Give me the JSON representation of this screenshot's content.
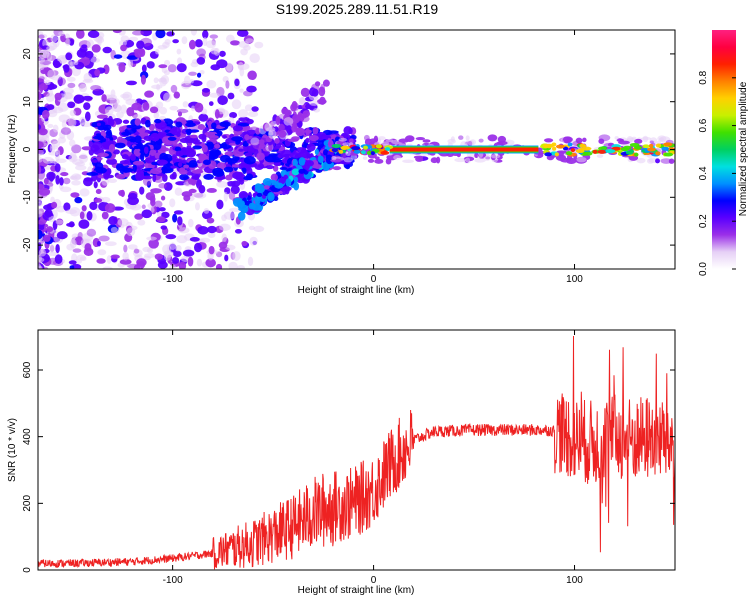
{
  "title": "S199.2025.289.11.51.R19",
  "chart_data": [
    {
      "type": "heatmap",
      "xlabel": "Height of straight line (km)",
      "ylabel": "Frequency (Hz)",
      "xlim": [
        -167,
        150
      ],
      "ylim": [
        -25,
        25
      ],
      "xticks": [
        -100,
        0,
        100
      ],
      "yticks": [
        -20,
        -10,
        0,
        10,
        20
      ],
      "colorbar": {
        "label": "Normalized spectral amplitude",
        "range": [
          0,
          1
        ],
        "ticks": [
          "0.0",
          "0.2",
          "0.4",
          "0.6",
          "0.8"
        ],
        "colors": [
          "#ffffff",
          "#e6d0f6",
          "#9b30e8",
          "#5a00ff",
          "#0000ff",
          "#0090ff",
          "#00e0e0",
          "#00d060",
          "#40e000",
          "#c8f000",
          "#ffd000",
          "#ff8000",
          "#ff2000",
          "#ff0040",
          "#ff2080"
        ]
      },
      "annotation": "narrow high-amplitude line near 0 Hz from 0 to 80 km; scattered noise at left; diagonal streak from about -65 km (-12 Hz) to -20 km (0 Hz)"
    },
    {
      "type": "line",
      "xlabel": "Height of straight line (km)",
      "ylabel": "SNR (10 * v/v)",
      "xlim": [
        -167,
        150
      ],
      "ylim": [
        0,
        720
      ],
      "xticks": [
        -100,
        0,
        100
      ],
      "yticks": [
        0,
        200,
        400,
        600
      ],
      "line_color": "#ee2222",
      "series": [
        {
          "name": "SNR",
          "x": [
            -167,
            -150,
            -120,
            -100,
            -80,
            -60,
            -40,
            -30,
            -20,
            -10,
            0,
            10,
            20,
            30,
            50,
            70,
            85,
            95,
            100,
            110,
            120,
            130,
            140,
            150
          ],
          "y": [
            20,
            20,
            25,
            35,
            50,
            80,
            130,
            170,
            190,
            200,
            240,
            330,
            390,
            415,
            420,
            420,
            420,
            415,
            390,
            380,
            400,
            390,
            400,
            380
          ]
        }
      ]
    }
  ]
}
